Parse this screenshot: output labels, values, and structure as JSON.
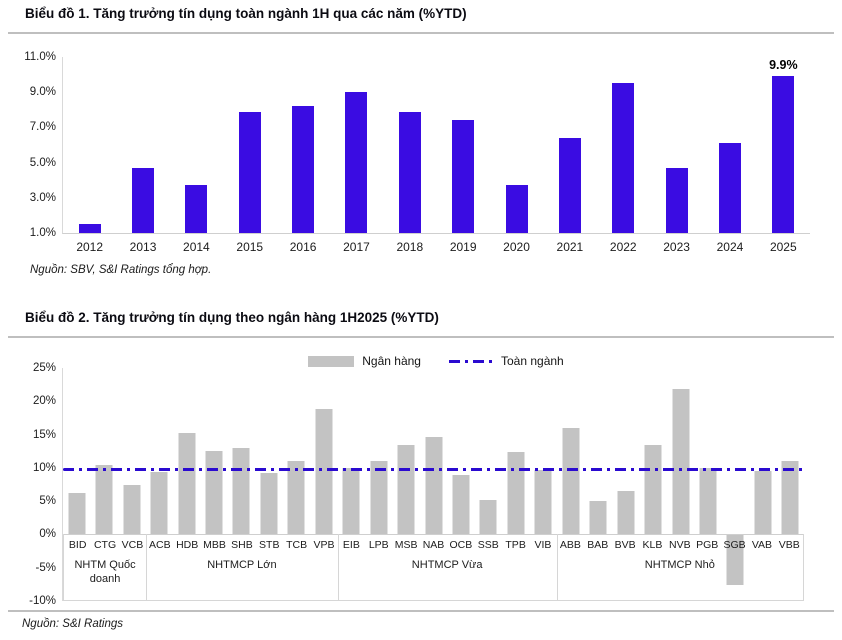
{
  "colors": {
    "bar_blue": "#3a0ce2",
    "bar_gray": "#c3c3c3",
    "line_blue": "#2a0ad0"
  },
  "chart_data": [
    {
      "type": "bar",
      "title": "Biểu đồ 1. Tăng trưởng tín dụng toàn ngành 1H qua các năm (%YTD)",
      "categories": [
        "2012",
        "2013",
        "2014",
        "2015",
        "2016",
        "2017",
        "2018",
        "2019",
        "2020",
        "2021",
        "2022",
        "2023",
        "2024",
        "2025"
      ],
      "values": [
        1.5,
        4.7,
        3.7,
        7.9,
        8.2,
        9.0,
        7.9,
        7.4,
        3.7,
        6.4,
        9.5,
        4.7,
        6.1,
        9.9
      ],
      "unit": "%",
      "ylim": [
        1.0,
        11.0
      ],
      "y_tick_labels": [
        "11.0%",
        "9.0%",
        "7.0%",
        "5.0%",
        "3.0%",
        "1.0%"
      ],
      "y_tick_values": [
        11.0,
        9.0,
        7.0,
        5.0,
        3.0,
        1.0
      ],
      "grid": false,
      "legend_position": "none",
      "annotations": [
        {
          "category": "2025",
          "text": "9.9%"
        }
      ],
      "source": "Nguồn: SBV, S&I Ratings tổng hợp."
    },
    {
      "type": "bar",
      "title": "Biểu đồ 2. Tăng trưởng tín dụng theo ngân hàng 1H2025 (%YTD)",
      "series_name": "Ngân hàng",
      "categories": [
        "BID",
        "CTG",
        "VCB",
        "ACB",
        "HDB",
        "MBB",
        "SHB",
        "STB",
        "TCB",
        "VPB",
        "EIB",
        "LPB",
        "MSB",
        "NAB",
        "OCB",
        "SSB",
        "TPB",
        "VIB",
        "ABB",
        "BAB",
        "BVB",
        "KLB",
        "NVB",
        "PGB",
        "SGB",
        "VAB",
        "VBB"
      ],
      "values": [
        6.2,
        10.4,
        7.4,
        9.4,
        15.3,
        12.5,
        13.0,
        9.2,
        11.1,
        18.8,
        10.0,
        11.1,
        13.5,
        14.6,
        8.9,
        5.2,
        12.4,
        9.7,
        16.0,
        5.0,
        6.6,
        13.4,
        21.9,
        10.0,
        -7.6,
        9.6,
        11.1
      ],
      "unit": "%",
      "groups": [
        {
          "label": "NHTM Quốc doanh",
          "count": 3
        },
        {
          "label": "NHTMCP Lớn",
          "count": 7
        },
        {
          "label": "NHTMCP Vừa",
          "count": 8
        },
        {
          "label": "NHTMCP Nhỏ",
          "count": 9
        }
      ],
      "reference_line": {
        "label": "Toàn ngành",
        "value": 9.9,
        "style": "dash-dot"
      },
      "ylim": [
        -10,
        25
      ],
      "y_tick_labels": [
        "25%",
        "20%",
        "15%",
        "10%",
        "5%",
        "0%",
        "-5%",
        "-10%"
      ],
      "y_tick_values": [
        25,
        20,
        15,
        10,
        5,
        0,
        -5,
        -10
      ],
      "grid": false,
      "legend_position": "top-center",
      "source": "Nguồn: S&I Ratings"
    }
  ]
}
